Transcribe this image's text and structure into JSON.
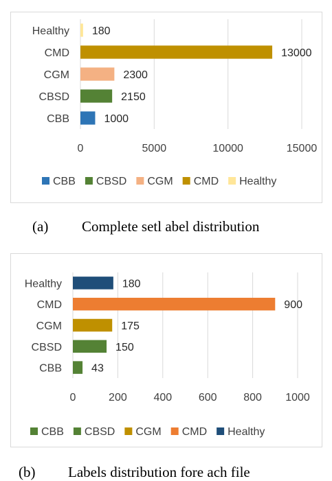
{
  "chart_data": [
    {
      "type": "bar",
      "orientation": "horizontal",
      "categories": [
        "CBB",
        "CBSD",
        "CGM",
        "CMD",
        "Healthy"
      ],
      "values": [
        1000,
        2150,
        2300,
        13000,
        180
      ],
      "value_labels": [
        "1000",
        "2150",
        "2300",
        "13000",
        "180"
      ],
      "colors": [
        "#2e75b6",
        "#548235",
        "#f4b183",
        "#bf9000",
        "#ffe699"
      ],
      "xlim": [
        0,
        15000
      ],
      "xticks": [
        0,
        5000,
        10000,
        15000
      ],
      "xtick_labels": [
        "0",
        "5000",
        "10000",
        "15000"
      ],
      "grid": true,
      "legend_position": "bottom",
      "legend": [
        "CBB",
        "CBSD",
        "CGM",
        "CMD",
        "Healthy"
      ]
    },
    {
      "type": "bar",
      "orientation": "horizontal",
      "categories": [
        "CBB",
        "CBSD",
        "CGM",
        "CMD",
        "Healthy"
      ],
      "values": [
        43,
        150,
        175,
        900,
        180
      ],
      "value_labels": [
        "43",
        "150",
        "175",
        "900",
        "180"
      ],
      "colors": [
        "#548235",
        "#548235",
        "#bf9000",
        "#ed7d31",
        "#1f4e79"
      ],
      "xlim": [
        0,
        1000
      ],
      "xticks": [
        0,
        200,
        400,
        600,
        800,
        1000
      ],
      "xtick_labels": [
        "0",
        "200",
        "400",
        "600",
        "800",
        "1000"
      ],
      "grid": true,
      "legend_position": "bottom",
      "legend": [
        "CBB",
        "CBSD",
        "CGM",
        "CMD",
        "Healthy"
      ]
    }
  ],
  "captions": [
    {
      "tag": "(a)",
      "text": "Complete setl abel distribution"
    },
    {
      "tag": "(b)",
      "text": "Labels distribution fore ach file"
    }
  ]
}
